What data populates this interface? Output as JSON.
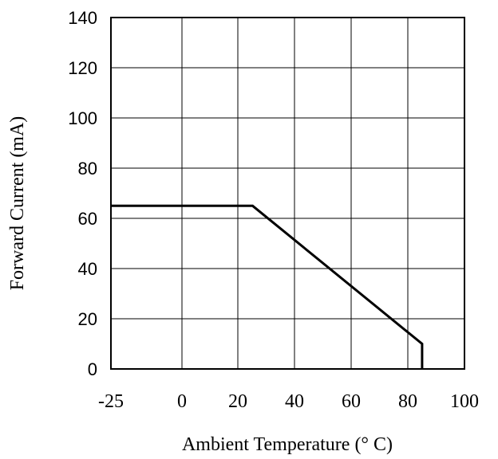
{
  "chart_data": {
    "type": "line",
    "xlabel": "Ambient Temperature (° C)",
    "ylabel": "Forward Current (mA)",
    "x_ticks": [
      "-25",
      "0",
      "20",
      "40",
      "60",
      "80",
      "100"
    ],
    "y_ticks": [
      "0",
      "20",
      "40",
      "60",
      "80",
      "100",
      "120",
      "140"
    ],
    "xlim": [
      -25,
      100
    ],
    "ylim": [
      0,
      140
    ],
    "grid": true,
    "series": [
      {
        "points": [
          {
            "x": -25,
            "y": 65
          },
          {
            "x": 25,
            "y": 65
          },
          {
            "x": 85,
            "y": 10
          },
          {
            "x": 85,
            "y": 0
          }
        ]
      }
    ]
  }
}
